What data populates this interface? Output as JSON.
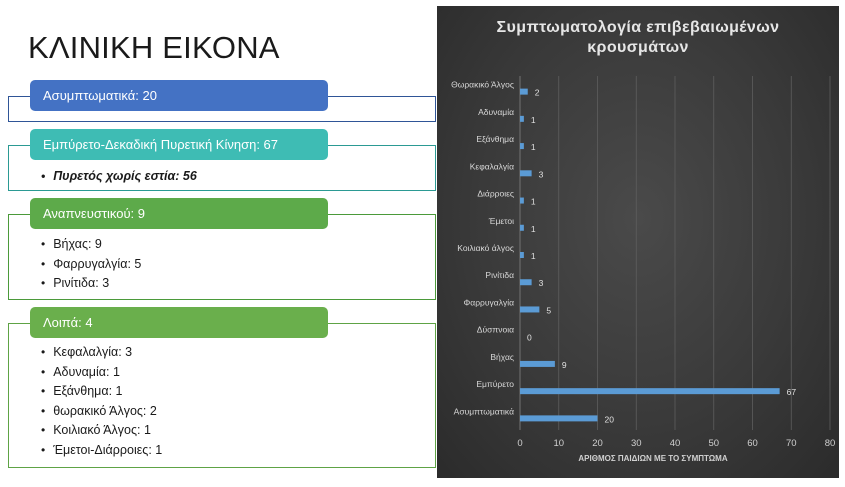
{
  "slide": {
    "title": "ΚΛΙΝΙΚΗ ΕΙΚΟΝΑ"
  },
  "sections": [
    {
      "header": "Ασυμπτωματικά: 20",
      "color": "#4472c4",
      "border": "#2f5597",
      "items": []
    },
    {
      "header": "Εμπύρετο-Δεκαδική Πυρετική Κίνηση: 67",
      "color": "#3ebcb4",
      "border": "#2b9a93",
      "items": [
        {
          "text": "Πυρετός χωρίς εστία: 56",
          "emphasis": true
        }
      ]
    },
    {
      "header": "Αναπνευστικού: 9",
      "color": "#5daa4a",
      "border": "#4b9a3a",
      "items": [
        {
          "text": "Βήχας: 9"
        },
        {
          "text": "Φαρρυγαλγία: 5"
        },
        {
          "text": "Ρινίτιδα: 3"
        }
      ]
    },
    {
      "header": "Λοιπά: 4",
      "color": "#6aaf4c",
      "border": "#5ea345",
      "items": [
        {
          "text": "Κεφαλαλγία: 3"
        },
        {
          "text": "Αδυναμία: 1"
        },
        {
          "text": "Εξάνθημα: 1"
        },
        {
          "text": "θωρακικό Άλγος: 2"
        },
        {
          "text": "Κοιλιακό Άλγος: 1"
        },
        {
          "text": "Έμετοι-Διάρροιες: 1"
        }
      ]
    }
  ],
  "chart_data": {
    "type": "bar",
    "orientation": "horizontal",
    "title_lines": [
      "Συμπτωματολογία επιβεβαιωμένων",
      "κρουσμάτων"
    ],
    "xlabel": "ΑΡΙΘΜΟΣ ΠΑΙΔΙΩΝ ΜΕ ΤΟ ΣΥΜΠΤΩΜΑ",
    "ylabel": "",
    "xlim": [
      0,
      80
    ],
    "xticks": [
      0,
      10,
      20,
      30,
      40,
      50,
      60,
      70,
      80
    ],
    "grid": true,
    "bar_color": "#5b9bd5",
    "categories": [
      "Θωρακικό Άλγος",
      "Αδυναμία",
      "Εξάνθημα",
      "Κεφαλαλγία",
      "Διάρροιες",
      "Έμετοι",
      "Κοιλιακό άλγος",
      "Ρινίτιδα",
      "Φαρρυγαλγία",
      "Δύσπνοια",
      "Βήχας",
      "Εμπύρετο",
      "Ασυμπτωματικά"
    ],
    "values": [
      2,
      1,
      1,
      3,
      1,
      1,
      1,
      3,
      5,
      0,
      9,
      67,
      20
    ]
  }
}
